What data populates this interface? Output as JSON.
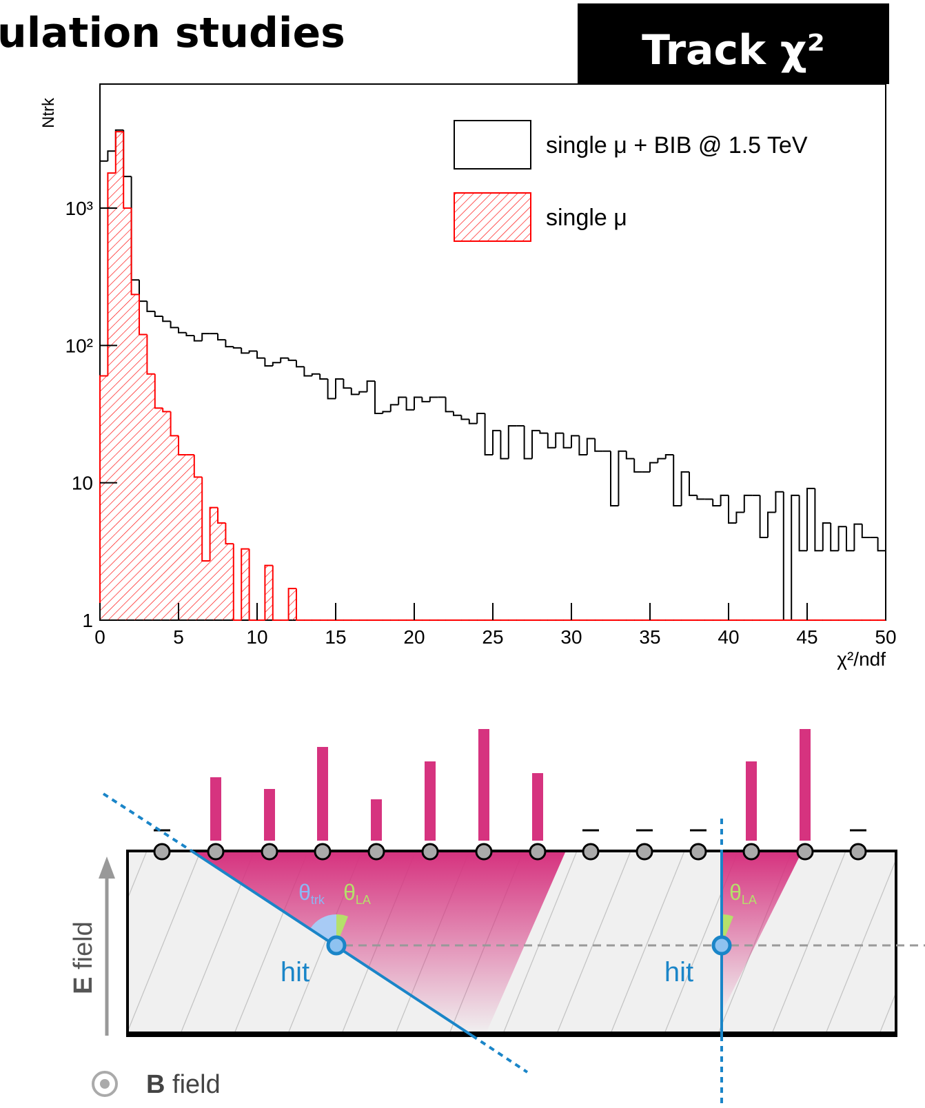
{
  "header": {
    "title": "ulation studies",
    "badge": "Track χ²"
  },
  "chart_data": {
    "type": "histogram",
    "log_y": true,
    "x_label": "χ²/ndf",
    "y_label": "Ntrk",
    "bins": [
      0,
      0.5,
      1,
      1.5,
      2,
      2.5,
      3,
      3.5,
      4,
      4.5,
      5,
      5.5,
      6,
      6.5,
      7,
      7.5,
      8,
      8.5,
      9,
      9.5,
      10,
      10.5,
      11,
      11.5,
      12,
      12.5,
      13,
      13.5,
      14,
      14.5,
      15,
      15.5,
      16,
      16.5,
      17,
      17.5,
      18,
      18.5,
      19,
      19.5,
      20,
      20.5,
      21,
      21.5,
      22,
      22.5,
      23,
      23.5,
      24,
      24.5,
      25,
      25.5,
      26,
      26.5,
      27,
      27.5,
      28,
      28.5,
      29,
      29.5,
      30,
      30.5,
      31,
      31.5,
      32,
      32.5,
      33,
      33.5,
      34,
      34.5,
      35,
      35.5,
      36,
      36.5,
      37,
      37.5,
      38,
      38.5,
      39,
      39.5,
      40,
      40.5,
      41,
      41.5,
      42,
      42.5,
      43,
      43.5,
      44,
      44.5,
      45,
      45.5,
      46,
      46.5,
      47,
      47.5,
      48,
      48.5,
      49,
      49.5,
      50
    ],
    "series": [
      {
        "name": "single μ + BIB @ 1.5 TeV",
        "color": "#000000",
        "fill": "none",
        "values": [
          2200,
          2600,
          3700,
          1700,
          300,
          210,
          177,
          163,
          150,
          135,
          124,
          118,
          108,
          122,
          122,
          110,
          98,
          96,
          88,
          91,
          81,
          71,
          75,
          81,
          78,
          70,
          60,
          62,
          57,
          41,
          57,
          49,
          44,
          46,
          55,
          32,
          33,
          37,
          42,
          34,
          42,
          39,
          42,
          42,
          33,
          31,
          29,
          27,
          32,
          16,
          24,
          15,
          26,
          26,
          15,
          24,
          23,
          18,
          23,
          18,
          22,
          16,
          21,
          17,
          17,
          6.8,
          17,
          15,
          12,
          12,
          14,
          15,
          16,
          6.8,
          12,
          8.1,
          7.6,
          7.6,
          6.8,
          8.1,
          5.1,
          6.1,
          8.1,
          8.1,
          4,
          6.1,
          8.6,
          0,
          8.1,
          3.2,
          9.1,
          3.2,
          5.1,
          3.2,
          4.8,
          3.2,
          5,
          4,
          4,
          3.2
        ]
      },
      {
        "name": "single μ",
        "color": "#ff0000",
        "fill": "hatch",
        "values": [
          60,
          1800,
          3600,
          1000,
          235,
          120,
          62,
          35,
          33,
          22,
          16,
          16,
          11,
          2.7,
          6.6,
          5.1,
          3.6,
          0,
          3.3,
          0,
          0,
          2.5,
          0,
          0,
          1.7,
          0,
          0,
          0,
          0,
          0,
          0,
          0,
          0,
          0,
          0,
          0,
          0,
          0,
          0,
          0,
          0,
          0,
          0,
          0,
          0,
          0,
          0,
          0,
          0,
          0,
          0,
          0,
          0,
          0,
          0,
          0,
          0,
          0,
          0,
          0,
          0,
          0,
          0,
          0,
          0,
          0,
          0,
          0,
          0,
          0,
          0,
          0,
          0,
          0,
          0,
          0,
          0,
          0,
          0,
          0,
          0,
          0,
          0,
          0,
          0,
          0,
          0,
          0,
          0,
          0,
          0,
          0,
          0,
          0,
          0,
          0,
          0,
          0,
          0,
          0
        ]
      }
    ],
    "xlim": [
      0,
      50
    ],
    "xticks": [
      0,
      5,
      10,
      15,
      20,
      25,
      30,
      35,
      40,
      45,
      50
    ],
    "ylim": [
      1,
      8000
    ],
    "yticks": [
      1,
      10,
      {
        "value": 100,
        "label": "10²"
      },
      {
        "value": 1000,
        "label": "10³"
      }
    ]
  },
  "diagram": {
    "theta_trk": {
      "symbol": "θ",
      "sub": "trk"
    },
    "theta_la": [
      {
        "symbol": "θ",
        "sub": "LA"
      },
      {
        "symbol": "θ",
        "sub": "LA"
      }
    ],
    "hit_labels": [
      "hit",
      "hit"
    ],
    "e_field": {
      "symbol": "E",
      "label": "field"
    },
    "b_field": {
      "symbol": "B",
      "label": "field"
    }
  }
}
